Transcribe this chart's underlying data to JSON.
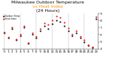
{
  "title": "Milwaukee Outdoor Temperature",
  "subtitle": "vs Heat Index",
  "subtitle2": "(24 Hours)",
  "background_color": "#ffffff",
  "plot_bg_color": "#ffffff",
  "grid_color": "#888888",
  "hours": [
    0,
    1,
    2,
    3,
    4,
    5,
    6,
    7,
    8,
    9,
    10,
    11,
    12,
    13,
    14,
    15,
    16,
    17,
    18,
    19,
    20,
    21,
    22,
    23
  ],
  "temp": [
    62,
    55,
    68,
    52,
    58,
    70,
    48,
    60,
    55,
    65,
    72,
    68,
    75,
    80,
    78,
    72,
    65,
    58,
    62,
    55,
    50,
    45,
    42,
    82
  ],
  "heat_index": [
    63,
    56,
    70,
    53,
    60,
    72,
    49,
    62,
    57,
    68,
    76,
    74,
    80,
    86,
    84,
    77,
    69,
    60,
    65,
    57,
    52,
    46,
    43,
    85
  ],
  "temp_color": "#000000",
  "heat_color": "#ff0000",
  "ylim": [
    40,
    90
  ],
  "ytick_values": [
    40,
    50,
    60,
    70,
    80,
    90
  ],
  "ytick_labels": [
    "4",
    "5",
    "6",
    "7",
    "8",
    "9"
  ],
  "title_color": "#000000",
  "title_fontsize": 4.5,
  "tick_fontsize": 3.0,
  "marker_size": 1.2,
  "legend_labels": [
    "Outdoor Temp",
    "Heat Index"
  ],
  "legend_colors": [
    "#000000",
    "#ff0000"
  ],
  "orange_color": "#ff8800",
  "vgrid_positions": [
    0,
    4,
    8,
    12,
    16,
    20
  ]
}
